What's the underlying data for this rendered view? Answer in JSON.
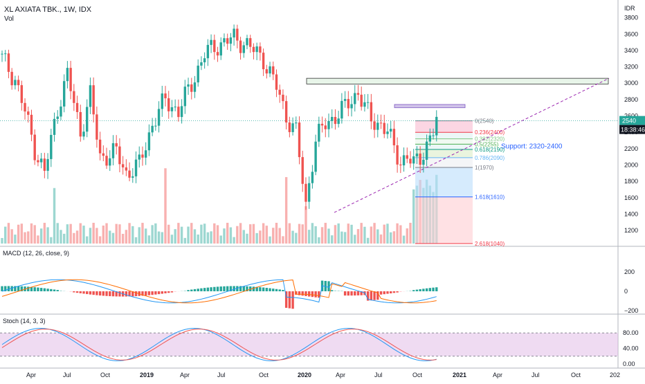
{
  "header": {
    "symbol_line": "XL AXIATA TBK., 1W, IDX",
    "volume_label": "Vol",
    "currency": "IDR"
  },
  "price_axis": {
    "ticks": [
      "4000",
      "3800",
      "3600",
      "3400",
      "3200",
      "3000",
      "2800",
      "2600",
      "2400",
      "2200",
      "2000",
      "1800",
      "1600",
      "1400",
      "1200"
    ],
    "last_price": "2540",
    "countdown": "18:38:46"
  },
  "time_axis": {
    "labels": [
      "Apr",
      "Jul",
      "Oct",
      "2019",
      "Apr",
      "Jul",
      "Oct",
      "2020",
      "Apr",
      "Jul",
      "Oct",
      "2021",
      "Apr",
      "Jul",
      "Oct",
      "202"
    ]
  },
  "annotations": {
    "support_text": "Support: 2320-2400"
  },
  "fib_levels": [
    {
      "label": "0(2540)",
      "price": 2540
    },
    {
      "label": "0.236(2400)",
      "price": 2400
    },
    {
      "label": "0.382(2320)",
      "price": 2320
    },
    {
      "label": "0.5(2255)",
      "price": 2255
    },
    {
      "label": "0.618(2190)",
      "price": 2190
    },
    {
      "label": "0.786(2090)",
      "price": 2090
    },
    {
      "label": "1(1970)",
      "price": 1970
    },
    {
      "label": "1.618(1610)",
      "price": 1610
    },
    {
      "label": "2.618(1040)",
      "price": 1040
    }
  ],
  "macd": {
    "title": "MACD (12, 26, close, 9)",
    "ticks": [
      "200",
      "0",
      "−200"
    ]
  },
  "stoch": {
    "title": "Stoch (14, 3, 3)",
    "ticks": [
      "80.00",
      "40.00",
      "0.00"
    ]
  },
  "colors": {
    "up": "#26a69a",
    "down": "#ef5350",
    "macd_line": "#2196f3",
    "signal_line": "#ff6d00",
    "stoch_k": "#2196f3",
    "stoch_d": "#ef5350",
    "stoch_band": "#e1bee7",
    "trendline": "#9c27b0"
  },
  "chart_data": {
    "type": "line",
    "title": "XL AXIATA TBK., 1W, IDX",
    "xlabel": "",
    "ylabel": "IDR",
    "ylim": [
      1040,
      4000
    ],
    "x": [
      "2018-Apr",
      "2018-Jul",
      "2018-Oct",
      "2019-Jan",
      "2019-Apr",
      "2019-Jul",
      "2019-Oct",
      "2020-Jan",
      "2020-Mar",
      "2020-Apr",
      "2020-Jul",
      "2020-Sep",
      "2020-Oct",
      "2020-Nov",
      "2020-Dec"
    ],
    "series": [
      {
        "values": [
          2200,
          3200,
          2000,
          2050,
          2700,
          3200,
          3600,
          3500,
          1450,
          2400,
          2900,
          2100,
          1980,
          2300,
          2540
        ]
      }
    ],
    "zones": [
      {
        "type": "resistance",
        "from": 2990,
        "to": 3060
      },
      {
        "type": "resistance",
        "from": 2700,
        "to": 2740
      }
    ],
    "fibonacci": [
      {
        "ratio": 0,
        "price": 2540
      },
      {
        "ratio": 0.236,
        "price": 2400
      },
      {
        "ratio": 0.382,
        "price": 2320
      },
      {
        "ratio": 0.5,
        "price": 2255
      },
      {
        "ratio": 0.618,
        "price": 2190
      },
      {
        "ratio": 0.786,
        "price": 2090
      },
      {
        "ratio": 1,
        "price": 1970
      },
      {
        "ratio": 1.618,
        "price": 1610
      },
      {
        "ratio": 2.618,
        "price": 1040
      }
    ],
    "macd_ylim": [
      -300,
      200
    ],
    "stoch_ylim": [
      0,
      100
    ],
    "stoch_bands": [
      20,
      80
    ]
  }
}
